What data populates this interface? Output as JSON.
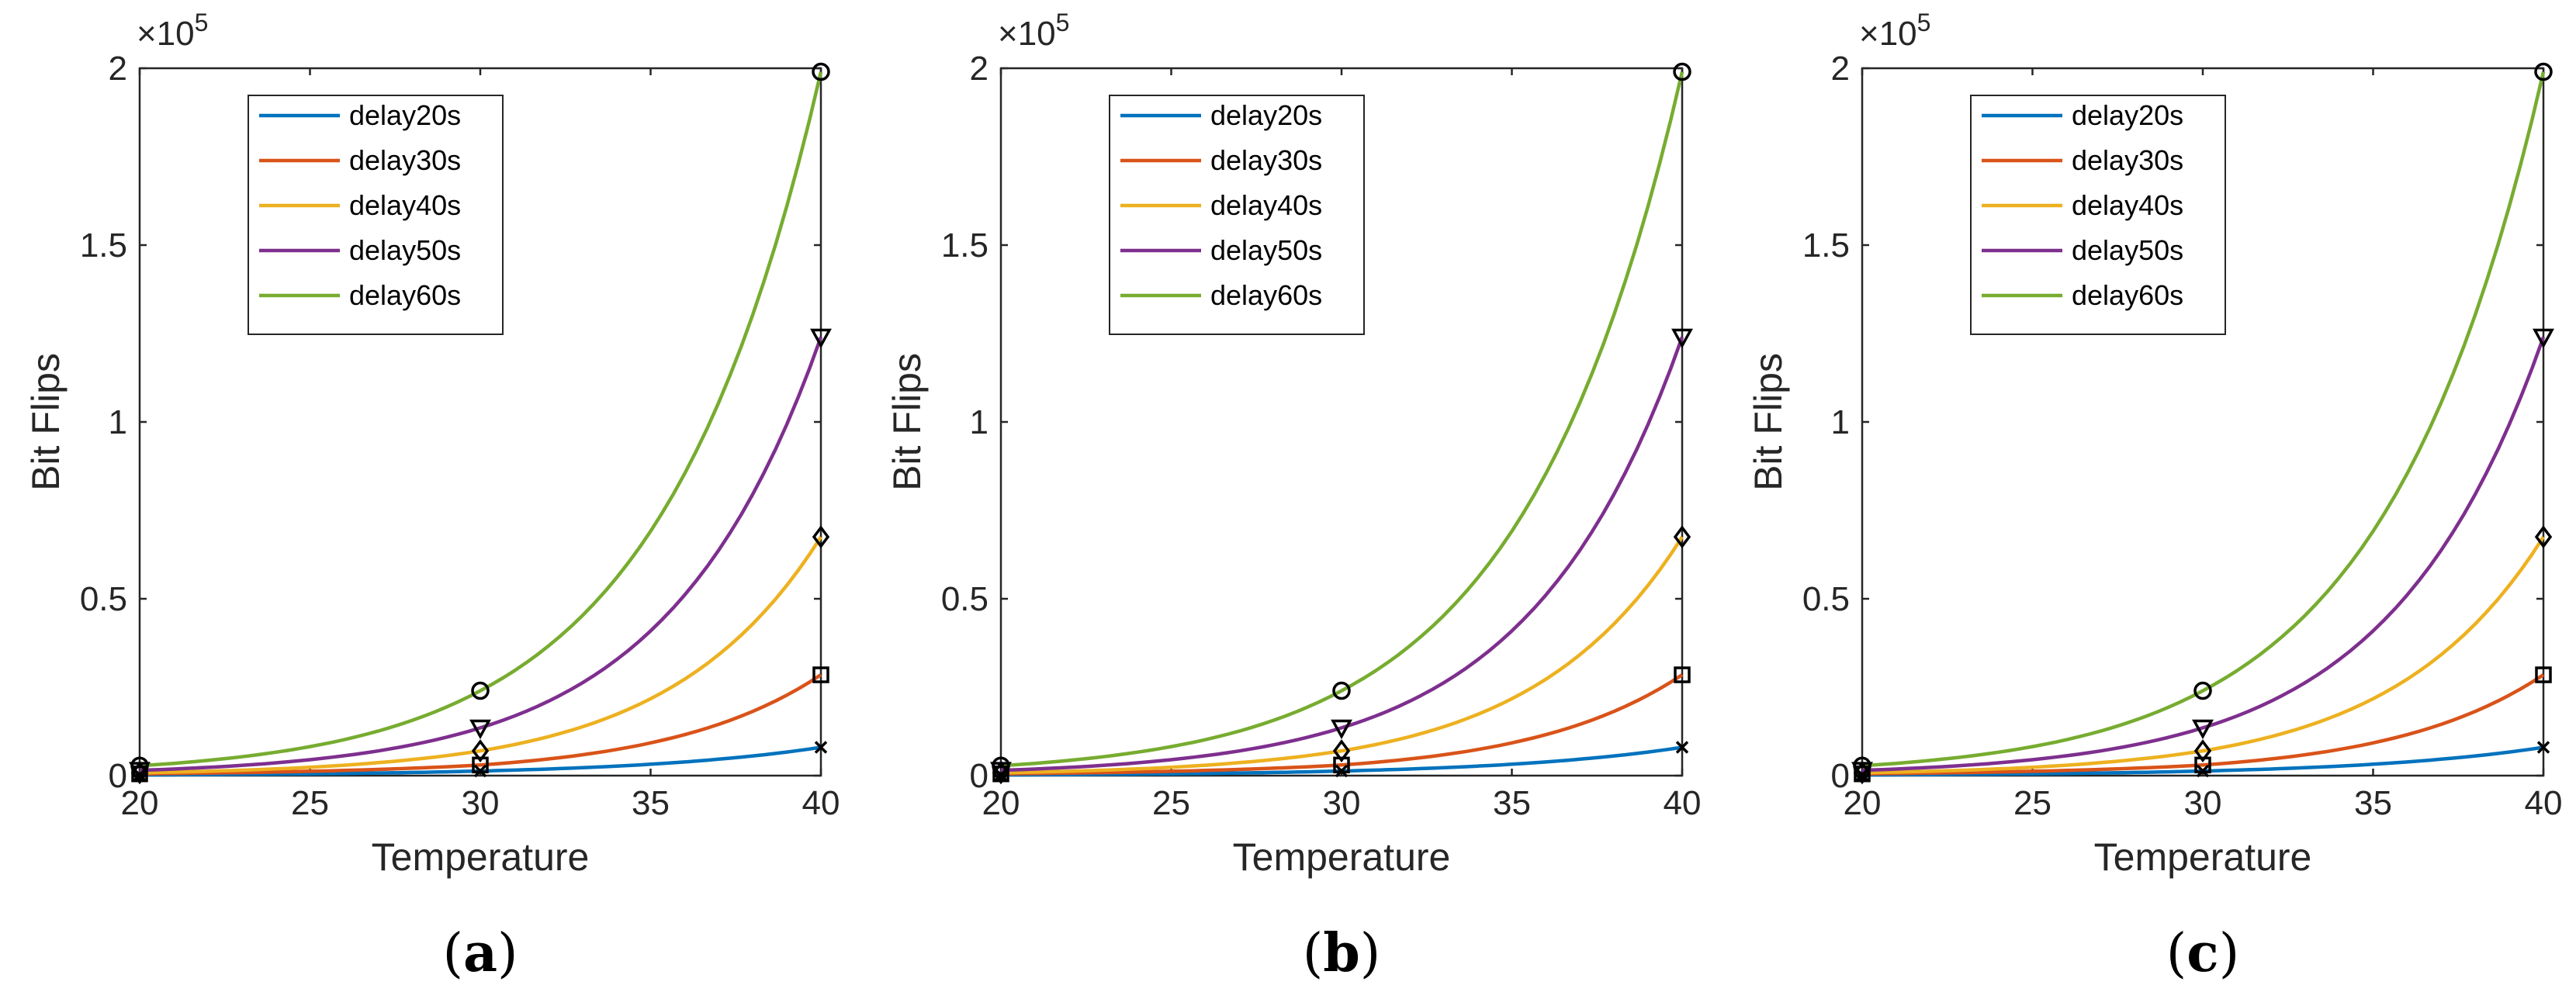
{
  "chart_data": [
    {
      "type": "line",
      "caption_prefix": "(",
      "caption_letter": "a",
      "caption_suffix": ")",
      "xlabel": "Temperature",
      "ylabel": "Bit Flips",
      "exponent_base": "×10",
      "exponent_power": "5",
      "xlim": [
        20,
        40
      ],
      "ylim": [
        0,
        200000
      ],
      "xticks": [
        "20",
        "25",
        "30",
        "35",
        "40"
      ],
      "yticks": [
        "0",
        "0.5",
        "1",
        "1.5",
        "2"
      ],
      "legend_position": "top-left",
      "series": [
        {
          "name": "delay20s",
          "color": "#0072BD",
          "marker": "x",
          "x": [
            20,
            30,
            40
          ],
          "y": [
            200,
            1300,
            8000
          ]
        },
        {
          "name": "delay30s",
          "color": "#D95319",
          "marker": "square",
          "x": [
            20,
            30,
            40
          ],
          "y": [
            500,
            3000,
            28500
          ]
        },
        {
          "name": "delay40s",
          "color": "#EDB120",
          "marker": "diamond",
          "x": [
            20,
            30,
            40
          ],
          "y": [
            800,
            7000,
            67500
          ]
        },
        {
          "name": "delay50s",
          "color": "#7E2F8E",
          "marker": "triangle-down",
          "x": [
            20,
            30,
            40
          ],
          "y": [
            1500,
            13500,
            124000
          ]
        },
        {
          "name": "delay60s",
          "color": "#77AC30",
          "marker": "circle",
          "x": [
            20,
            30,
            40
          ],
          "y": [
            2800,
            24000,
            199000
          ]
        }
      ]
    },
    {
      "type": "line",
      "caption_prefix": "(",
      "caption_letter": "b",
      "caption_suffix": ")",
      "xlabel": "Temperature",
      "ylabel": "Bit Flips",
      "exponent_base": "×10",
      "exponent_power": "5",
      "xlim": [
        20,
        40
      ],
      "ylim": [
        0,
        200000
      ],
      "xticks": [
        "20",
        "25",
        "30",
        "35",
        "40"
      ],
      "yticks": [
        "0",
        "0.5",
        "1",
        "1.5",
        "2"
      ],
      "legend_position": "top-left",
      "series": [
        {
          "name": "delay20s",
          "color": "#0072BD",
          "marker": "x",
          "x": [
            20,
            30,
            40
          ],
          "y": [
            200,
            1300,
            8000
          ]
        },
        {
          "name": "delay30s",
          "color": "#D95319",
          "marker": "square",
          "x": [
            20,
            30,
            40
          ],
          "y": [
            500,
            3000,
            28500
          ]
        },
        {
          "name": "delay40s",
          "color": "#EDB120",
          "marker": "diamond",
          "x": [
            20,
            30,
            40
          ],
          "y": [
            800,
            7000,
            67500
          ]
        },
        {
          "name": "delay50s",
          "color": "#7E2F8E",
          "marker": "triangle-down",
          "x": [
            20,
            30,
            40
          ],
          "y": [
            1500,
            13500,
            124000
          ]
        },
        {
          "name": "delay60s",
          "color": "#77AC30",
          "marker": "circle",
          "x": [
            20,
            30,
            40
          ],
          "y": [
            2800,
            24000,
            199000
          ]
        }
      ]
    },
    {
      "type": "line",
      "caption_prefix": "(",
      "caption_letter": "c",
      "caption_suffix": ")",
      "xlabel": "Temperature",
      "ylabel": "Bit Flips",
      "exponent_base": "×10",
      "exponent_power": "5",
      "xlim": [
        20,
        40
      ],
      "ylim": [
        0,
        200000
      ],
      "xticks": [
        "20",
        "25",
        "30",
        "35",
        "40"
      ],
      "yticks": [
        "0",
        "0.5",
        "1",
        "1.5",
        "2"
      ],
      "legend_position": "top-left",
      "series": [
        {
          "name": "delay20s",
          "color": "#0072BD",
          "marker": "x",
          "x": [
            20,
            30,
            40
          ],
          "y": [
            200,
            1300,
            8000
          ]
        },
        {
          "name": "delay30s",
          "color": "#D95319",
          "marker": "square",
          "x": [
            20,
            30,
            40
          ],
          "y": [
            500,
            3000,
            28500
          ]
        },
        {
          "name": "delay40s",
          "color": "#EDB120",
          "marker": "diamond",
          "x": [
            20,
            30,
            40
          ],
          "y": [
            800,
            7000,
            67500
          ]
        },
        {
          "name": "delay50s",
          "color": "#7E2F8E",
          "marker": "triangle-down",
          "x": [
            20,
            30,
            40
          ],
          "y": [
            1500,
            13500,
            124000
          ]
        },
        {
          "name": "delay60s",
          "color": "#77AC30",
          "marker": "circle",
          "x": [
            20,
            30,
            40
          ],
          "y": [
            2800,
            24000,
            199000
          ]
        }
      ]
    }
  ]
}
